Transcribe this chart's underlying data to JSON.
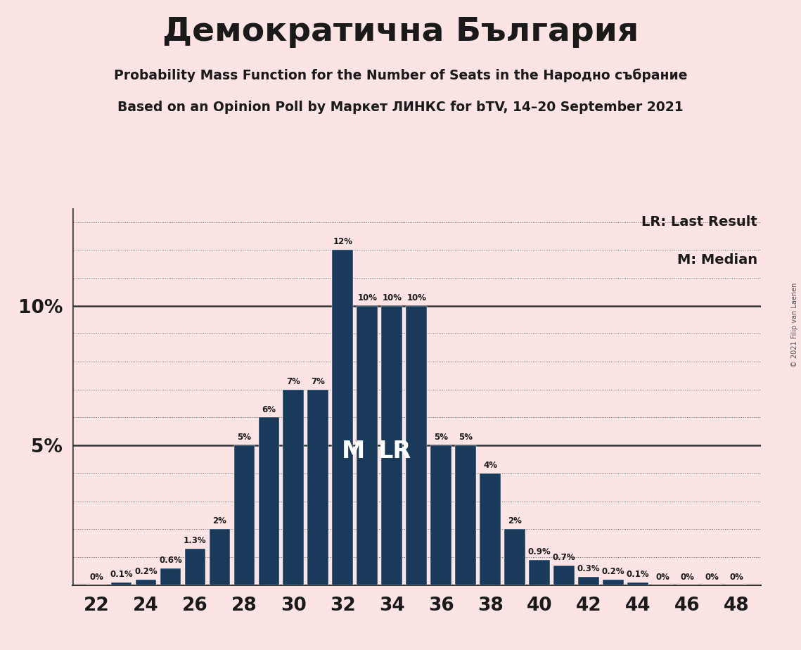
{
  "title": "Демократична България",
  "subtitle1": "Probability Mass Function for the Number of Seats in the Народно събрание",
  "subtitle2": "Based on an Opinion Poll by Маркет ЛИНКС for bTV, 14–20 September 2021",
  "copyright": "© 2021 Filip van Laenen",
  "lr_label": "LR: Last Result",
  "m_label": "M: Median",
  "background_color": "#fce4e4",
  "bar_color": "#1a3a5c",
  "seats": [
    22,
    23,
    24,
    25,
    26,
    27,
    28,
    29,
    30,
    31,
    32,
    33,
    34,
    35,
    36,
    37,
    38,
    39,
    40,
    41,
    42,
    43,
    44,
    45,
    46,
    47,
    48
  ],
  "values": [
    0.0,
    0.1,
    0.2,
    0.6,
    1.3,
    2.0,
    5.0,
    6.0,
    7.0,
    7.0,
    12.0,
    10.0,
    10.0,
    10.0,
    5.0,
    5.0,
    4.0,
    2.0,
    0.9,
    0.7,
    0.3,
    0.2,
    0.1,
    0.0,
    0.0,
    0.0,
    0.0
  ],
  "value_labels": [
    "0%",
    "0.1%",
    "0.2%",
    "0.6%",
    "1.3%",
    "2%",
    "5%",
    "6%",
    "7%",
    "7%",
    "12%",
    "10%",
    "10%",
    "10%",
    "5%",
    "5%",
    "4%",
    "2%",
    "0.9%",
    "0.7%",
    "0.3%",
    "0.2%",
    "0.1%",
    "0%",
    "0%",
    "0%",
    "0%"
  ],
  "median_seat": 33,
  "lr_seat": 34,
  "ylim": [
    0,
    13.5
  ],
  "xlim": [
    21.0,
    49.0
  ]
}
